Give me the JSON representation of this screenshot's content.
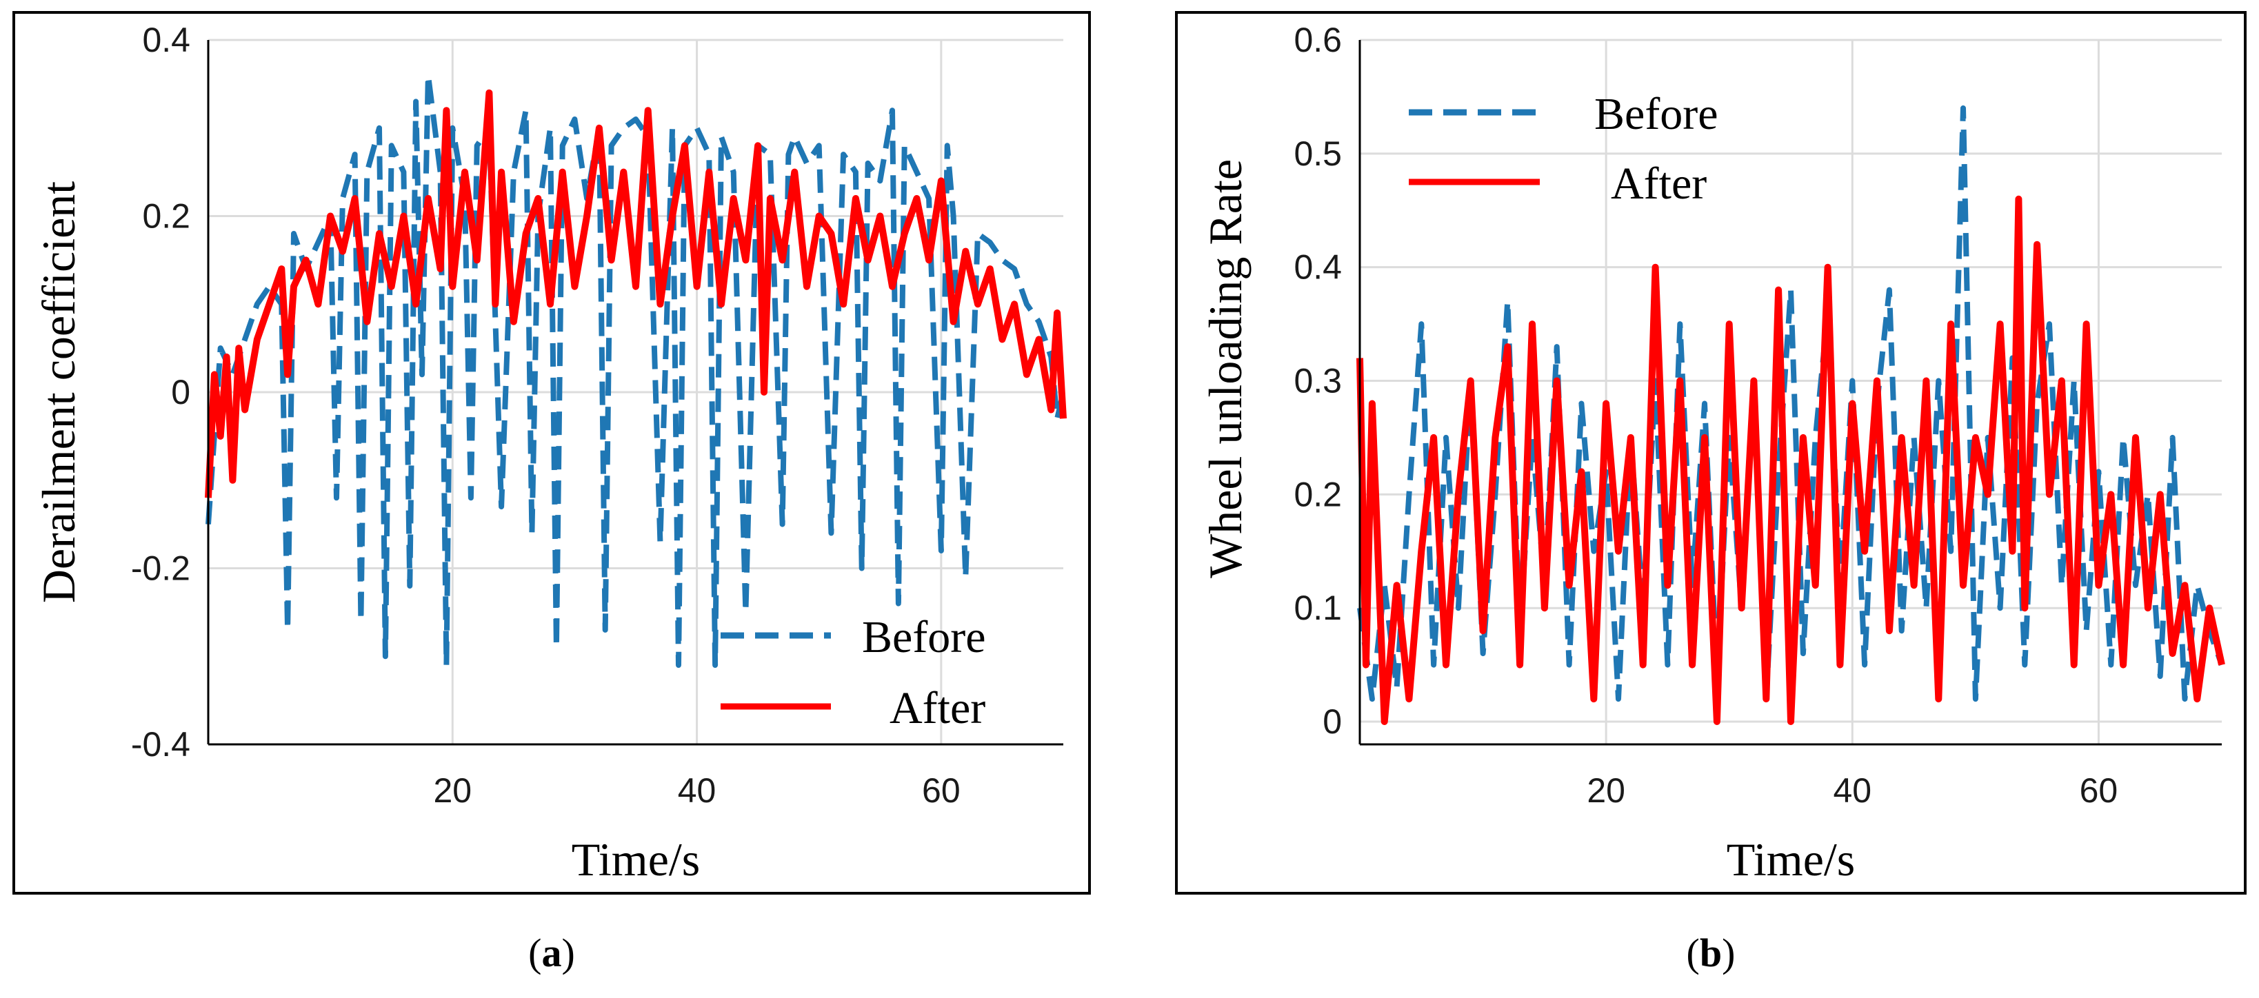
{
  "figure": {
    "caption_a_letter": "a",
    "caption_b_letter": "b"
  },
  "chart_data": [
    {
      "id": "a",
      "type": "line",
      "title": "",
      "xlabel": "Time/s",
      "ylabel": "Derailment coefficient",
      "xlim": [
        0,
        70
      ],
      "ylim": [
        -0.4,
        0.4
      ],
      "xticks": [
        20,
        40,
        60
      ],
      "xtick_labels": [
        "20",
        "40",
        "60"
      ],
      "yticks": [
        -0.4,
        -0.2,
        0,
        0.2,
        0.4
      ],
      "ytick_labels": [
        "-0.4",
        "-0.2",
        "0",
        "0.2",
        "0.4"
      ],
      "grid": true,
      "legend_position": "bottom-right",
      "series": [
        {
          "name": "Before",
          "color": "#1f77b4",
          "style": "dashed",
          "x": [
            0,
            1,
            2,
            3,
            4,
            5,
            6,
            6.5,
            7,
            8,
            9,
            10,
            10.5,
            11,
            12,
            12.5,
            13,
            14,
            14.5,
            15,
            16,
            16.5,
            17,
            17.5,
            18,
            19,
            19.5,
            20,
            21,
            21.5,
            22,
            23,
            24,
            25,
            26,
            26.5,
            27,
            28,
            28.5,
            29,
            30,
            31,
            32,
            32.5,
            33,
            34,
            35,
            36,
            37,
            38,
            38.5,
            39,
            40,
            41,
            41.5,
            42,
            43,
            44,
            45,
            46,
            47,
            47.5,
            48,
            49,
            50,
            51,
            52,
            53,
            53.5,
            54,
            55,
            56,
            56.5,
            57,
            58,
            59,
            60,
            60.5,
            61,
            62,
            63,
            64,
            65,
            66,
            67,
            68,
            69,
            69.5,
            70
          ],
          "values": [
            -0.15,
            0.05,
            0.02,
            0.06,
            0.1,
            0.12,
            0.1,
            -0.27,
            0.18,
            0.14,
            0.17,
            0.2,
            -0.12,
            0.22,
            0.27,
            -0.26,
            0.25,
            0.3,
            -0.3,
            0.28,
            0.25,
            -0.22,
            0.33,
            0.02,
            0.36,
            0.25,
            -0.31,
            0.3,
            0.22,
            -0.12,
            0.28,
            0.3,
            -0.13,
            0.25,
            0.32,
            -0.16,
            0.2,
            0.3,
            -0.29,
            0.28,
            0.31,
            0.22,
            0.3,
            -0.27,
            0.28,
            0.3,
            0.31,
            0.29,
            -0.17,
            0.3,
            -0.31,
            0.28,
            0.3,
            0.27,
            -0.31,
            0.29,
            0.25,
            -0.25,
            0.28,
            0.27,
            -0.15,
            0.27,
            0.29,
            0.26,
            0.28,
            -0.16,
            0.27,
            0.25,
            -0.2,
            0.26,
            0.24,
            0.32,
            -0.24,
            0.28,
            0.25,
            0.22,
            -0.18,
            0.28,
            0.2,
            -0.21,
            0.18,
            0.17,
            0.15,
            0.14,
            0.1,
            0.08,
            0.04,
            -0.03,
            0.0
          ]
        },
        {
          "name": "After",
          "color": "#ff0000",
          "style": "solid",
          "x": [
            0,
            0.5,
            1,
            1.5,
            2,
            2.5,
            3,
            4,
            5,
            6,
            6.5,
            7,
            8,
            9,
            10,
            11,
            12,
            13,
            14,
            15,
            16,
            17,
            18,
            19,
            19.5,
            20,
            21,
            22,
            23,
            23.5,
            24,
            25,
            26,
            27,
            28,
            29,
            30,
            31,
            32,
            33,
            34,
            35,
            36,
            37,
            38,
            39,
            40,
            41,
            42,
            43,
            44,
            45,
            45.5,
            46,
            47,
            48,
            49,
            50,
            51,
            52,
            53,
            54,
            55,
            56,
            57,
            58,
            59,
            60,
            61,
            62,
            63,
            64,
            65,
            66,
            67,
            68,
            69,
            69.5,
            70
          ],
          "values": [
            -0.12,
            0.02,
            -0.05,
            0.04,
            -0.1,
            0.05,
            -0.02,
            0.06,
            0.1,
            0.14,
            0.02,
            0.12,
            0.15,
            0.1,
            0.2,
            0.16,
            0.22,
            0.08,
            0.18,
            0.12,
            0.2,
            0.1,
            0.22,
            0.14,
            0.32,
            0.12,
            0.25,
            0.15,
            0.34,
            0.1,
            0.25,
            0.08,
            0.18,
            0.22,
            0.1,
            0.25,
            0.12,
            0.2,
            0.3,
            0.15,
            0.25,
            0.12,
            0.32,
            0.1,
            0.2,
            0.28,
            0.12,
            0.25,
            0.1,
            0.22,
            0.15,
            0.28,
            0.0,
            0.22,
            0.15,
            0.25,
            0.12,
            0.2,
            0.18,
            0.1,
            0.22,
            0.15,
            0.2,
            0.12,
            0.18,
            0.22,
            0.15,
            0.24,
            0.08,
            0.16,
            0.1,
            0.14,
            0.06,
            0.1,
            0.02,
            0.06,
            -0.02,
            0.09,
            -0.03
          ]
        }
      ]
    },
    {
      "id": "b",
      "type": "line",
      "title": "",
      "xlabel": "Time/s",
      "ylabel": "Wheel unloading Rate",
      "xlim": [
        0,
        70
      ],
      "ylim": [
        -0.02,
        0.6
      ],
      "xticks": [
        20,
        40,
        60
      ],
      "xtick_labels": [
        "20",
        "40",
        "60"
      ],
      "yticks": [
        0,
        0.1,
        0.2,
        0.3,
        0.4,
        0.5,
        0.6
      ],
      "ytick_labels": [
        "0",
        "0.1",
        "0.2",
        "0.3",
        "0.4",
        "0.5",
        "0.6"
      ],
      "grid": true,
      "legend_position": "top-left",
      "series": [
        {
          "name": "Before",
          "color": "#1f77b4",
          "style": "dashed",
          "x": [
            0,
            1,
            2,
            3,
            4,
            5,
            6,
            7,
            8,
            9,
            10,
            11,
            12,
            13,
            14,
            15,
            16,
            17,
            18,
            19,
            20,
            21,
            22,
            23,
            24,
            25,
            26,
            27,
            28,
            29,
            30,
            31,
            32,
            33,
            34,
            35,
            36,
            37,
            38,
            39,
            40,
            41,
            42,
            43,
            44,
            45,
            46,
            47,
            48,
            49,
            50,
            51,
            52,
            53,
            54,
            55,
            56,
            57,
            58,
            59,
            60,
            61,
            62,
            63,
            64,
            65,
            66,
            67,
            68,
            69,
            70
          ],
          "values": [
            0.1,
            0.02,
            0.12,
            0.03,
            0.2,
            0.35,
            0.05,
            0.25,
            0.1,
            0.3,
            0.06,
            0.2,
            0.37,
            0.08,
            0.25,
            0.12,
            0.33,
            0.05,
            0.28,
            0.15,
            0.22,
            0.02,
            0.25,
            0.1,
            0.3,
            0.05,
            0.35,
            0.12,
            0.28,
            0.04,
            0.25,
            0.1,
            0.3,
            0.02,
            0.22,
            0.38,
            0.06,
            0.25,
            0.36,
            0.12,
            0.3,
            0.05,
            0.28,
            0.38,
            0.08,
            0.25,
            0.1,
            0.3,
            0.15,
            0.54,
            0.02,
            0.25,
            0.1,
            0.32,
            0.05,
            0.28,
            0.35,
            0.12,
            0.3,
            0.08,
            0.22,
            0.05,
            0.25,
            0.12,
            0.2,
            0.04,
            0.25,
            0.02,
            0.12,
            0.08,
            0.05
          ]
        },
        {
          "name": "After",
          "color": "#ff0000",
          "style": "solid",
          "x": [
            0,
            0.5,
            1,
            2,
            3,
            4,
            5,
            6,
            7,
            8,
            9,
            10,
            11,
            12,
            13,
            14,
            15,
            16,
            17,
            18,
            19,
            20,
            21,
            22,
            23,
            24,
            25,
            26,
            27,
            28,
            29,
            30,
            31,
            32,
            33,
            34,
            35,
            36,
            37,
            38,
            39,
            40,
            41,
            42,
            43,
            44,
            45,
            46,
            47,
            48,
            49,
            50,
            51,
            52,
            53,
            53.5,
            54,
            55,
            56,
            57,
            58,
            59,
            60,
            61,
            62,
            63,
            64,
            65,
            66,
            67,
            68,
            69,
            70
          ],
          "values": [
            0.32,
            0.05,
            0.28,
            0.0,
            0.12,
            0.02,
            0.15,
            0.25,
            0.05,
            0.2,
            0.3,
            0.08,
            0.25,
            0.33,
            0.05,
            0.35,
            0.1,
            0.3,
            0.12,
            0.22,
            0.02,
            0.28,
            0.15,
            0.25,
            0.05,
            0.4,
            0.12,
            0.3,
            0.05,
            0.25,
            0.0,
            0.35,
            0.1,
            0.3,
            0.02,
            0.38,
            0.0,
            0.25,
            0.12,
            0.4,
            0.05,
            0.28,
            0.15,
            0.3,
            0.08,
            0.25,
            0.12,
            0.3,
            0.02,
            0.35,
            0.12,
            0.25,
            0.2,
            0.35,
            0.15,
            0.46,
            0.1,
            0.42,
            0.2,
            0.3,
            0.05,
            0.35,
            0.12,
            0.2,
            0.05,
            0.25,
            0.1,
            0.2,
            0.06,
            0.12,
            0.02,
            0.1,
            0.05
          ]
        }
      ]
    }
  ]
}
